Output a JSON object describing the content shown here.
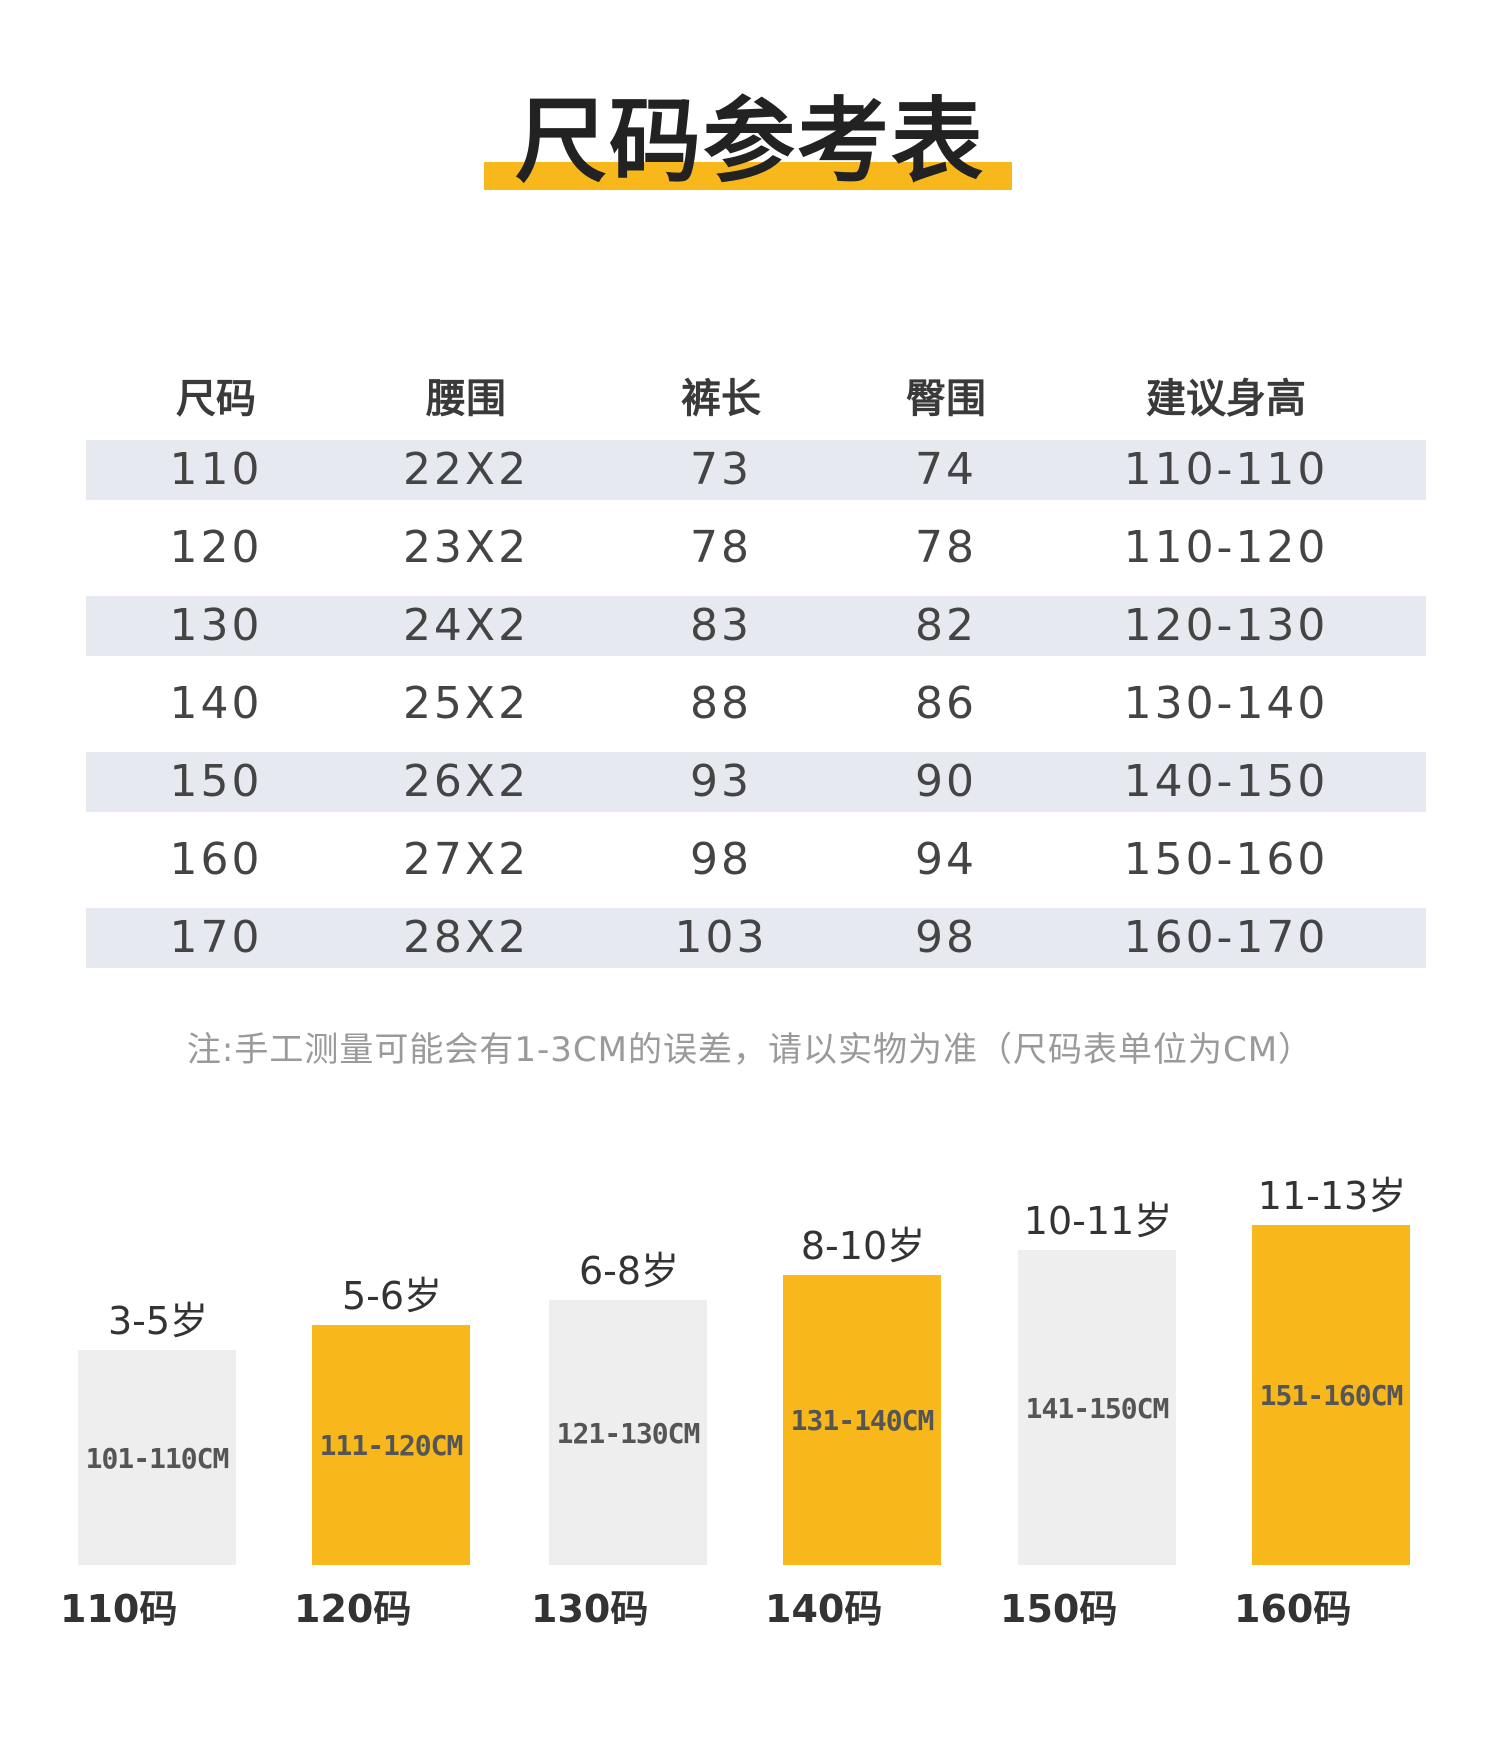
{
  "title": "尺码参考表",
  "colors": {
    "accent": "#F8B81B",
    "grey_bar": "#EEEEEE",
    "row_shade": "#E6EAF0"
  },
  "table": {
    "headers": [
      "尺码",
      "腰围",
      "裤长",
      "臀围",
      "建议身高"
    ],
    "rows": [
      [
        "110",
        "22X2",
        "73",
        "74",
        "110-110"
      ],
      [
        "120",
        "23X2",
        "78",
        "78",
        "110-120"
      ],
      [
        "130",
        "24X2",
        "83",
        "82",
        "120-130"
      ],
      [
        "140",
        "25X2",
        "88",
        "86",
        "130-140"
      ],
      [
        "150",
        "26X2",
        "93",
        "90",
        "140-150"
      ],
      [
        "160",
        "27X2",
        "98",
        "94",
        "150-160"
      ],
      [
        "170",
        "28X2",
        "103",
        "98",
        "160-170"
      ]
    ]
  },
  "note": "注:手工测量可能会有1-3CM的误差，请以实物为准（尺码表单位为CM）",
  "height_chart": {
    "bars": [
      {
        "age": "3-5岁",
        "range": "101-110CM",
        "size": "110码",
        "level": 1,
        "color": "grey"
      },
      {
        "age": "5-6岁",
        "range": "111-120CM",
        "size": "120码",
        "level": 2,
        "color": "accent"
      },
      {
        "age": "6-8岁",
        "range": "121-130CM",
        "size": "130码",
        "level": 3,
        "color": "grey"
      },
      {
        "age": "8-10岁",
        "range": "131-140CM",
        "size": "140码",
        "level": 4,
        "color": "accent"
      },
      {
        "age": "10-11岁",
        "range": "141-150CM",
        "size": "150码",
        "level": 5,
        "color": "grey"
      },
      {
        "age": "11-13岁",
        "range": "151-160CM",
        "size": "160码",
        "level": 6,
        "color": "accent"
      }
    ]
  }
}
